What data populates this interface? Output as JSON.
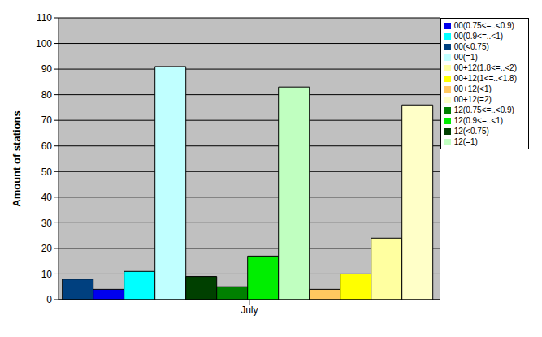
{
  "chart_data": {
    "type": "bar",
    "categories": [
      "July"
    ],
    "ylabel": "Amount of stations",
    "ylim": [
      0,
      110
    ],
    "yticks": [
      0,
      10,
      20,
      30,
      40,
      50,
      60,
      70,
      80,
      90,
      100,
      110
    ],
    "grid": true,
    "legend": "upper right",
    "series": [
      {
        "name": "00(<0.75)",
        "color": "#00407f",
        "values": [
          8
        ]
      },
      {
        "name": "00(0.75<=..<0.9)",
        "color": "#0000ee",
        "values": [
          4
        ]
      },
      {
        "name": "00(0.9<=..<1)",
        "color": "#00ffff",
        "values": [
          11
        ]
      },
      {
        "name": "00(=1)",
        "color": "#c0ffff",
        "values": [
          91
        ]
      },
      {
        "name": "12(<0.75)",
        "color": "#004000",
        "values": [
          9
        ]
      },
      {
        "name": "12(0.75<=..<0.9)",
        "color": "#008000",
        "values": [
          5
        ]
      },
      {
        "name": "12(0.9<=..<1)",
        "color": "#00ee00",
        "values": [
          17
        ]
      },
      {
        "name": "12(=1)",
        "color": "#c0ffc0",
        "values": [
          83
        ]
      },
      {
        "name": "00+12(<1)",
        "color": "#ffc860",
        "values": [
          4
        ]
      },
      {
        "name": "00+12(1<=..<1.8)",
        "color": "#ffff00",
        "values": [
          10
        ]
      },
      {
        "name": "00+12(1.8<=..<2)",
        "color": "#ffffa0",
        "values": [
          24
        ]
      },
      {
        "name": "00+12(=2)",
        "color": "#ffffc8",
        "values": [
          76
        ]
      }
    ]
  }
}
